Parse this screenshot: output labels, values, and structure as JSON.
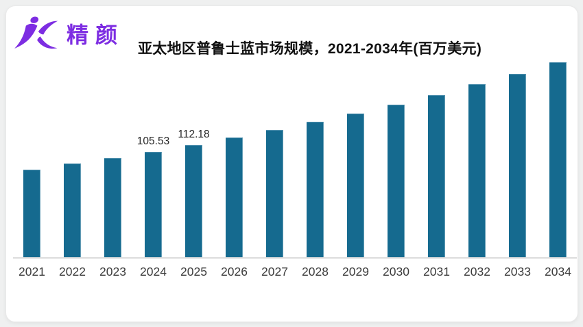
{
  "brand": {
    "logo_text": "精颜",
    "logo_color": "#7d2de2"
  },
  "chart_data": {
    "type": "bar",
    "title": "亚太地区普鲁士蓝市场规模，2021-2034年(百万美元)",
    "categories": [
      "2021",
      "2022",
      "2023",
      "2024",
      "2025",
      "2026",
      "2027",
      "2028",
      "2029",
      "2030",
      "2031",
      "2032",
      "2033",
      "2034"
    ],
    "values": [
      87.85,
      93.39,
      99.27,
      105.53,
      112.18,
      119.25,
      126.76,
      134.74,
      143.23,
      152.26,
      161.85,
      172.04,
      182.88,
      194.4
    ],
    "value_labels": {
      "2024": "105.53",
      "2025": "112.18"
    },
    "xlabel": "",
    "ylabel": "",
    "ylim": [
      0,
      250
    ],
    "grid": false,
    "legend": false,
    "bar_color": "#156a8f",
    "axis_line_color": "#dcdcdc",
    "tick_label_color": "#3c3c3c",
    "data_label_color": "#262626"
  }
}
